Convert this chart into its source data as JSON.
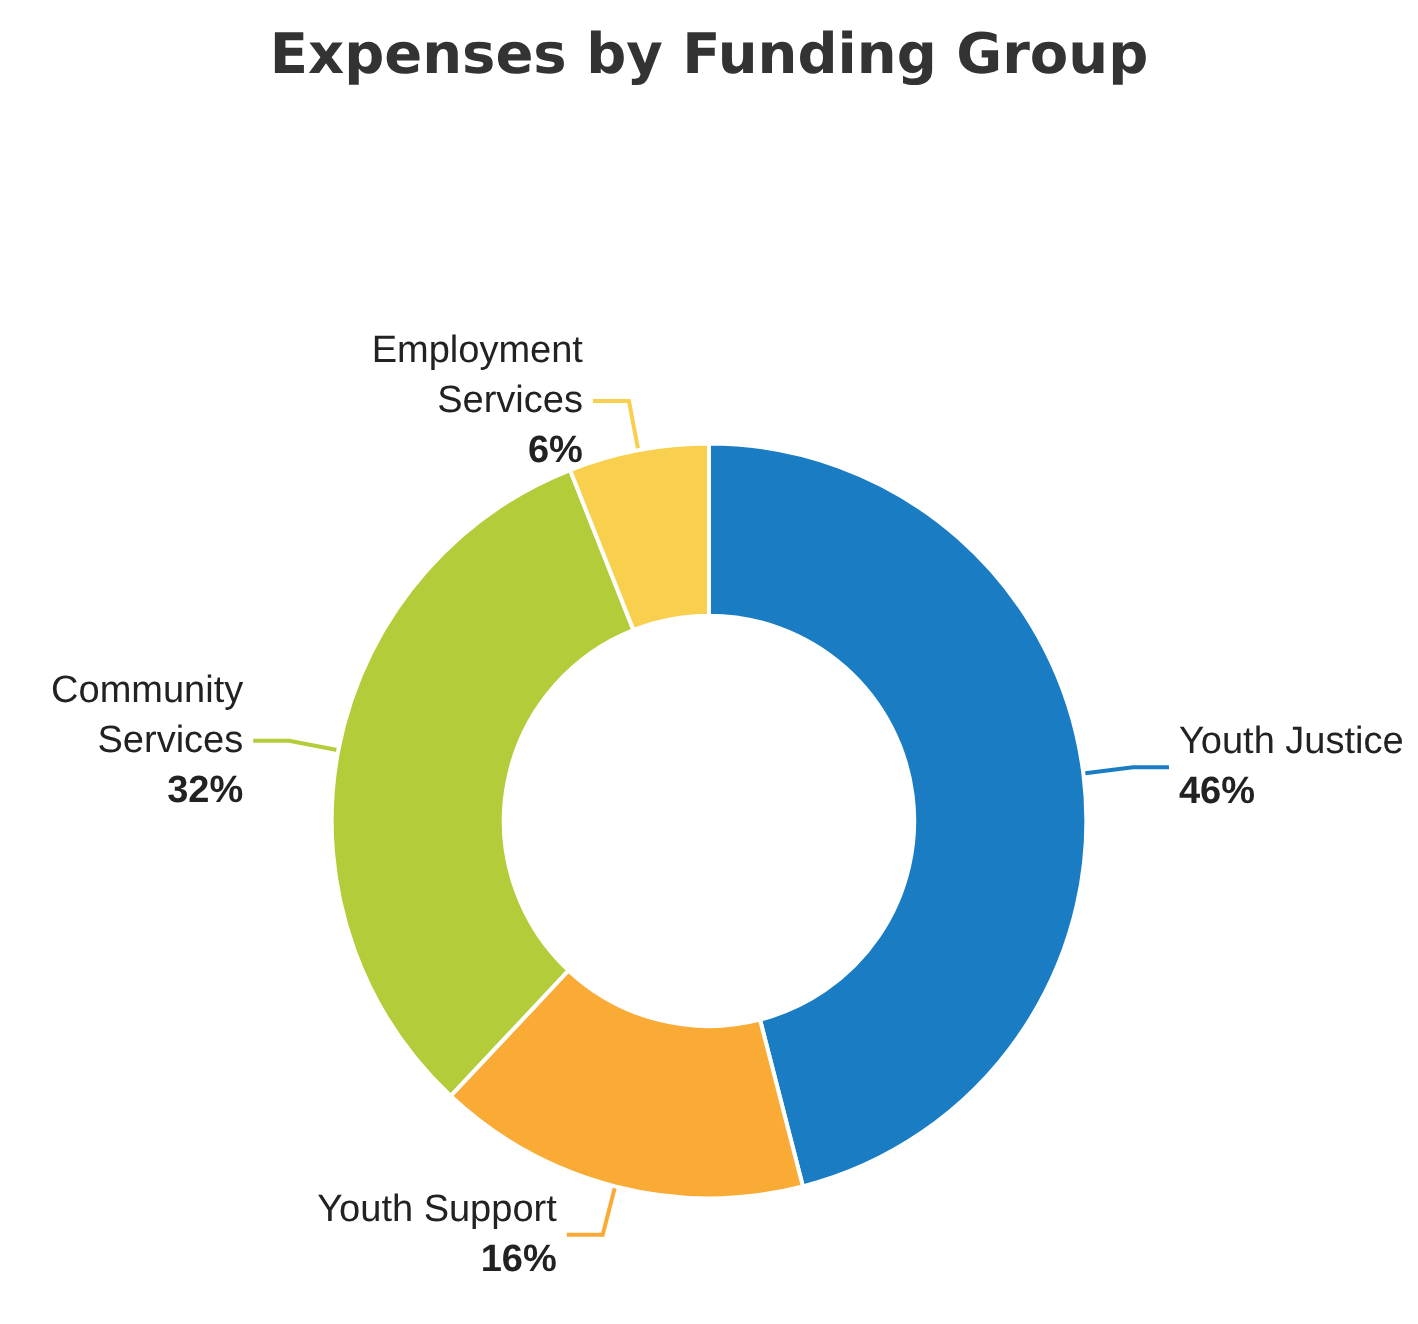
{
  "chart_data": {
    "type": "donut",
    "title": "Expenses by Funding Group",
    "categories": [
      "Youth Justice",
      "Youth Support",
      "Community Services",
      "Employment Services"
    ],
    "values": [
      46,
      16,
      32,
      6
    ],
    "value_labels": [
      "46%",
      "16%",
      "32%",
      "6%"
    ],
    "colors": [
      "#1a7dc4",
      "#f9ab35",
      "#b3cc3a",
      "#f8d04e"
    ]
  }
}
